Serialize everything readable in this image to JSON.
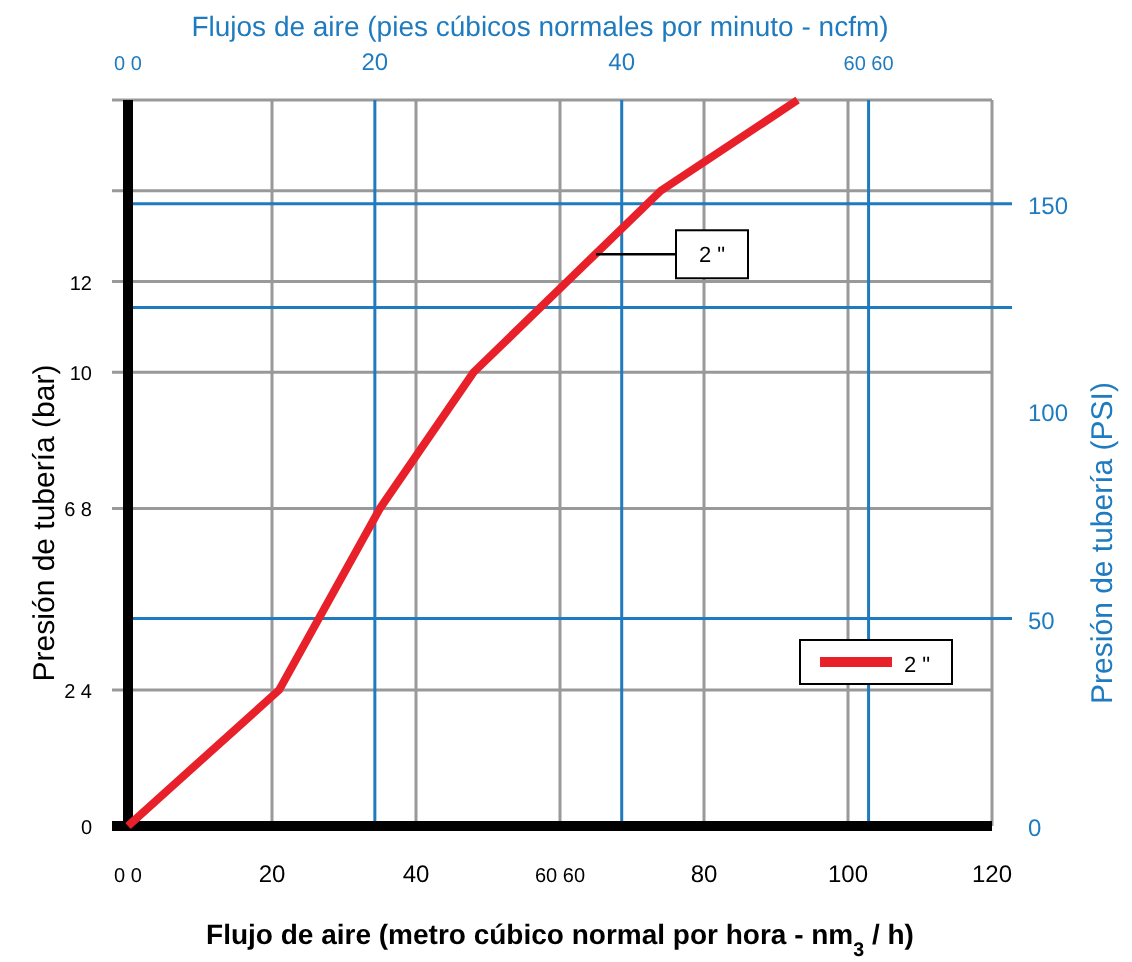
{
  "chart_data": {
    "type": "line",
    "xlabel": "Flujo de aire (metro cúbico normal por hora - nm$_{3}$/ h)",
    "ylabel": "Presión de tubería (bar)",
    "y2label": "Presión de tubería (PSI)",
    "x2label": "Flujos de aire (pies cúbicos normales por minuto - ncfm)",
    "x": [
      0,
      21,
      35,
      48,
      61,
      74,
      93
    ],
    "series": [
      {
        "name": "2 \"",
        "color": "#e8202a",
        "values": [
          0,
          3,
          7,
          10,
          12,
          14,
          16
        ]
      }
    ],
    "xlim": [
      0,
      120
    ],
    "xticks": [
      {
        "value": 0,
        "label": "0 0"
      },
      20,
      40,
      {
        "value": 60,
        "label": "60 60"
      },
      80,
      100,
      120
    ],
    "ylim": [
      0,
      16
    ],
    "yticks": [
      0,
      {
        "value": 3,
        "label": "2 4"
      },
      {
        "value": 7,
        "label": "6 8"
      },
      10,
      12,
      {
        "value": 14,
        "label": null
      },
      {
        "value": 16,
        "label": null
      }
    ],
    "y2lim": [
      0,
      175
    ],
    "y2ticks": [
      0,
      50,
      100,
      {
        "value": 125,
        "label": null
      },
      150
    ],
    "x2lim": [
      0,
      70
    ],
    "x2ticks": [
      {
        "value": 0,
        "label": "0 0"
      },
      20,
      40,
      {
        "value": 60,
        "label": "60 60"
      }
    ],
    "annotations": [
      {
        "text": "2 \"",
        "x": 65,
        "y": 12.6
      }
    ],
    "grid": true,
    "legend": "bottom right",
    "marker": "none",
    "line_style": "solid"
  }
}
